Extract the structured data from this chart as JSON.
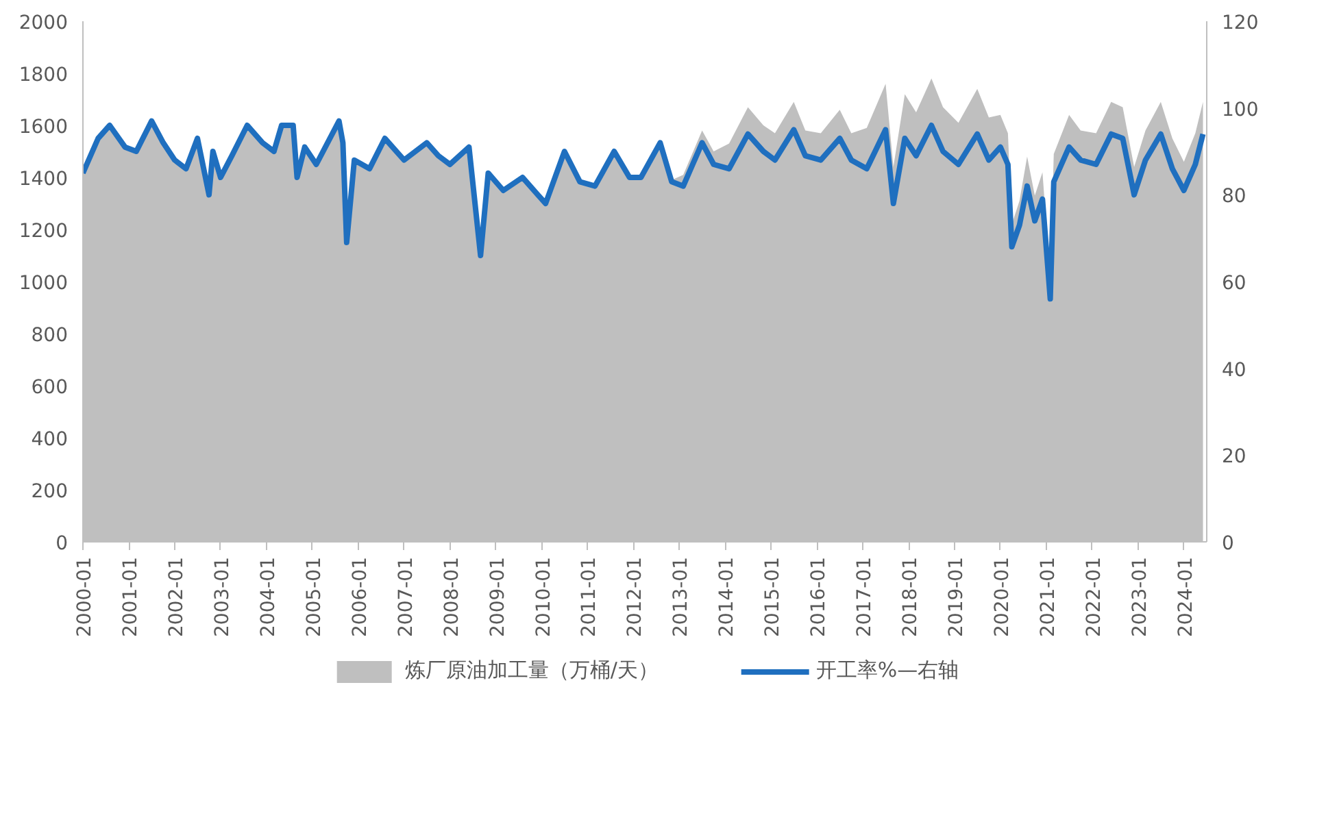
{
  "chart_data": {
    "type": "area",
    "x": [
      "2000-01",
      "2000-05",
      "2000-08",
      "2000-12",
      "2001-03",
      "2001-07",
      "2001-10",
      "2002-01",
      "2002-04",
      "2002-07",
      "2002-10",
      "2002-11",
      "2003-01",
      "2003-04",
      "2003-08",
      "2003-12",
      "2004-03",
      "2004-05",
      "2004-08",
      "2004-09",
      "2004-11",
      "2005-02",
      "2005-08",
      "2005-09",
      "2005-10",
      "2005-12",
      "2006-04",
      "2006-08",
      "2007-01",
      "2007-07",
      "2007-10",
      "2008-01",
      "2008-06",
      "2008-09",
      "2008-11",
      "2009-03",
      "2009-08",
      "2009-12",
      "2010-02",
      "2010-07",
      "2010-11",
      "2011-03",
      "2011-08",
      "2011-12",
      "2012-03",
      "2012-08",
      "2012-11",
      "2013-02",
      "2013-07",
      "2013-10",
      "2014-02",
      "2014-07",
      "2014-11",
      "2015-02",
      "2015-07",
      "2015-10",
      "2016-02",
      "2016-07",
      "2016-10",
      "2017-02",
      "2017-07",
      "2017-09",
      "2017-12",
      "2018-03",
      "2018-07",
      "2018-10",
      "2019-02",
      "2019-07",
      "2019-10",
      "2020-01",
      "2020-03",
      "2020-04",
      "2020-06",
      "2020-08",
      "2020-10",
      "2020-12",
      "2021-02",
      "2021-03",
      "2021-07",
      "2021-10",
      "2022-02",
      "2022-06",
      "2022-09",
      "2022-12",
      "2023-03",
      "2023-07",
      "2023-10",
      "2024-01",
      "2024-04",
      "2024-06"
    ],
    "series": [
      {
        "name": "炼厂原油加工量（万桶/天）",
        "color": "#bfbfbf",
        "values": [
          1420,
          1550,
          1600,
          1520,
          1500,
          1620,
          1540,
          1470,
          1440,
          1550,
          1340,
          1500,
          1400,
          1490,
          1600,
          1540,
          1500,
          1600,
          1600,
          1400,
          1520,
          1450,
          1620,
          1540,
          1150,
          1470,
          1440,
          1550,
          1470,
          1540,
          1490,
          1450,
          1520,
          1100,
          1420,
          1350,
          1400,
          1340,
          1300,
          1500,
          1390,
          1370,
          1500,
          1400,
          1400,
          1540,
          1390,
          1410,
          1580,
          1500,
          1530,
          1670,
          1600,
          1570,
          1690,
          1580,
          1570,
          1660,
          1570,
          1590,
          1760,
          1440,
          1720,
          1650,
          1780,
          1670,
          1610,
          1740,
          1630,
          1640,
          1570,
          1220,
          1310,
          1480,
          1330,
          1420,
          1010,
          1490,
          1640,
          1580,
          1570,
          1690,
          1670,
          1440,
          1580,
          1690,
          1550,
          1460,
          1570,
          1690
        ]
      },
      {
        "name": "开工率%—右轴",
        "type": "line",
        "axis": "y2",
        "color": "#1f6fbf",
        "values": [
          85,
          93,
          96,
          91,
          90,
          97,
          92,
          88,
          86,
          93,
          80,
          90,
          84,
          89,
          96,
          92,
          90,
          96,
          96,
          84,
          91,
          87,
          97,
          92,
          69,
          88,
          86,
          93,
          88,
          92,
          89,
          87,
          91,
          66,
          85,
          81,
          84,
          80,
          78,
          90,
          83,
          82,
          90,
          84,
          84,
          92,
          83,
          82,
          92,
          87,
          86,
          94,
          90,
          88,
          95,
          89,
          88,
          93,
          88,
          86,
          95,
          78,
          93,
          89,
          96,
          90,
          87,
          94,
          88,
          91,
          87,
          68,
          73,
          82,
          74,
          79,
          56,
          83,
          91,
          88,
          87,
          94,
          93,
          80,
          88,
          94,
          86,
          81,
          87,
          94
        ]
      }
    ],
    "xlim": [
      "2000-01",
      "2024-07"
    ],
    "xticks": [
      "2000-01",
      "2001-01",
      "2002-01",
      "2003-01",
      "2004-01",
      "2005-01",
      "2006-01",
      "2007-01",
      "2008-01",
      "2009-01",
      "2010-01",
      "2011-01",
      "2012-01",
      "2013-01",
      "2014-01",
      "2015-01",
      "2016-01",
      "2017-01",
      "2018-01",
      "2019-01",
      "2020-01",
      "2021-01",
      "2022-01",
      "2023-01",
      "2024-01"
    ],
    "ylim": [
      0,
      2000
    ],
    "yticks": [
      0,
      200,
      400,
      600,
      800,
      1000,
      1200,
      1400,
      1600,
      1800,
      2000
    ],
    "y2lim": [
      0,
      120
    ],
    "y2ticks": [
      0,
      20,
      40,
      60,
      80,
      100,
      120
    ],
    "grid": false,
    "legend": "bottom",
    "line_style": "solid",
    "marker": "none"
  }
}
